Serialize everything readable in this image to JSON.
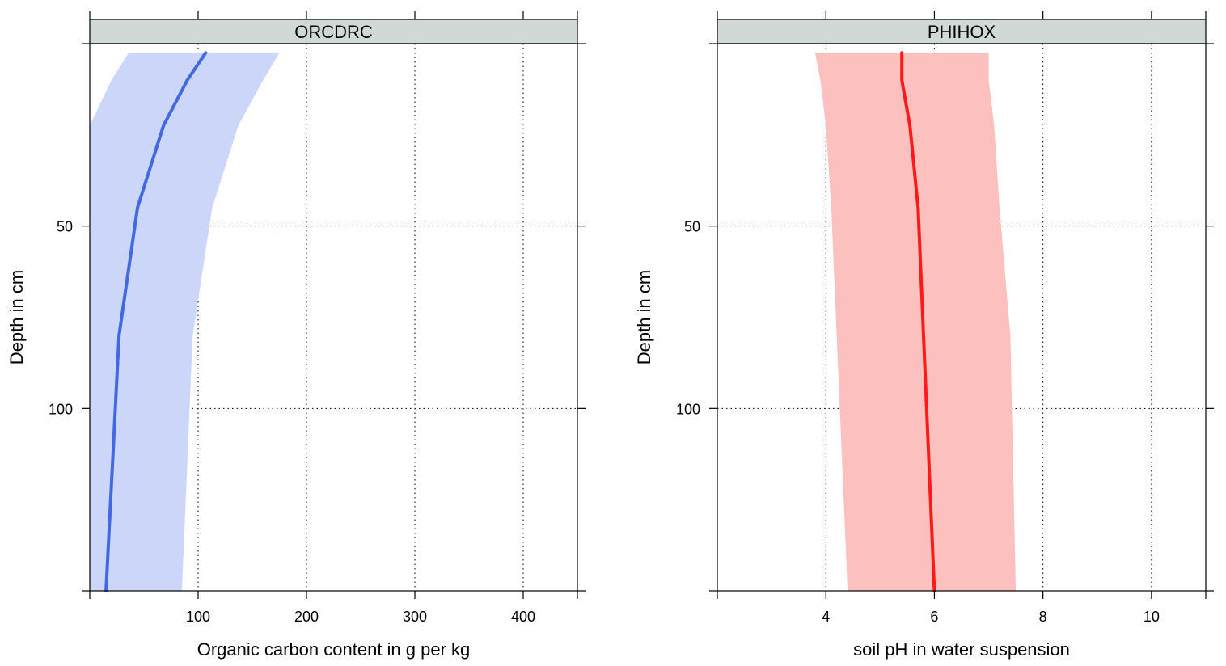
{
  "chart_data": [
    {
      "type": "area",
      "panel": "ORCDRC",
      "strip_label": "ORCDRC",
      "xlabel": "Organic carbon content in g per kg",
      "ylabel": "Depth in cm",
      "xlim": [
        0,
        450
      ],
      "ylim": [
        150,
        0
      ],
      "xticks": [
        100,
        200,
        300,
        400
      ],
      "xtick_labels": [
        "100",
        "200",
        "300",
        "400"
      ],
      "yticks": [
        50,
        100
      ],
      "ytick_labels": [
        "50",
        "100"
      ],
      "grid": true,
      "series": [
        {
          "role": "mean",
          "depth": [
            2.5,
            10,
            22.5,
            45,
            80,
            150
          ],
          "values": [
            107,
            90,
            68,
            44,
            27,
            15
          ]
        },
        {
          "role": "band",
          "depth": [
            2.5,
            10,
            22.5,
            45,
            80,
            150
          ],
          "lower": [
            36,
            20,
            0,
            0,
            0,
            0
          ],
          "upper": [
            175,
            160,
            137,
            113,
            95,
            85
          ]
        }
      ],
      "colors": {
        "mean": "#4169e1",
        "band": "#ccd6f8",
        "strip": "#d1d9d7"
      }
    },
    {
      "type": "area",
      "panel": "PHIHOX",
      "strip_label": "PHIHOX",
      "xlabel": "soil pH in water suspension",
      "ylabel": "Depth in cm",
      "xlim": [
        2,
        11
      ],
      "ylim": [
        150,
        0
      ],
      "xticks": [
        4,
        6,
        8,
        10
      ],
      "xtick_labels": [
        "4",
        "6",
        "8",
        "10"
      ],
      "yticks": [
        50,
        100
      ],
      "ytick_labels": [
        "50",
        "100"
      ],
      "grid": true,
      "series": [
        {
          "role": "mean",
          "depth": [
            2.5,
            10,
            22.5,
            45,
            80,
            150
          ],
          "values": [
            5.4,
            5.4,
            5.55,
            5.7,
            5.8,
            6.0
          ]
        },
        {
          "role": "band",
          "depth": [
            2.5,
            10,
            22.5,
            45,
            80,
            150
          ],
          "lower": [
            3.8,
            3.9,
            4.0,
            4.1,
            4.2,
            4.4
          ],
          "upper": [
            7.0,
            7.0,
            7.1,
            7.2,
            7.4,
            7.5
          ]
        }
      ],
      "colors": {
        "mean": "#ff1a1a",
        "band": "#fcc0bf",
        "strip": "#d1d9d7"
      }
    }
  ]
}
